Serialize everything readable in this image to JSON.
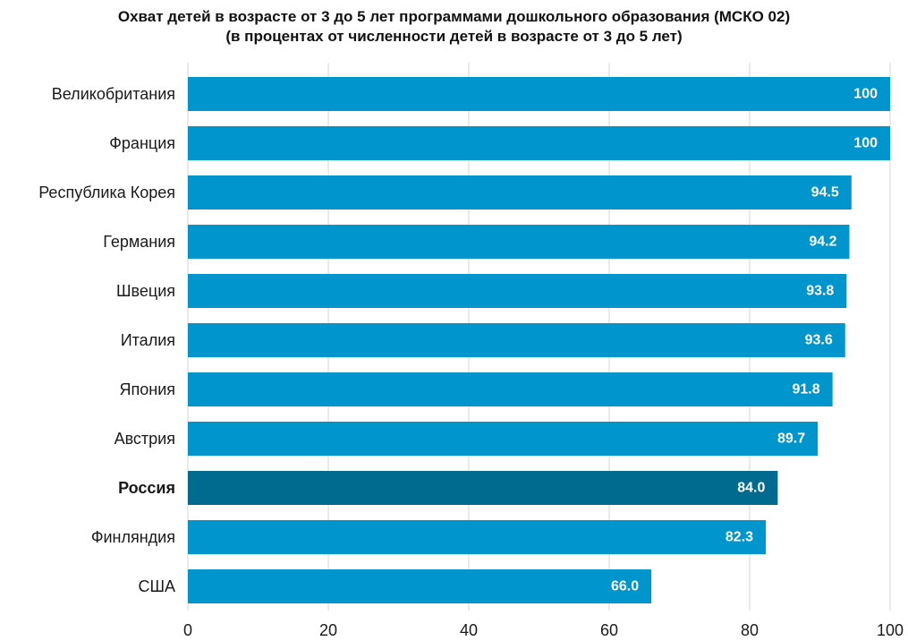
{
  "chart_data": {
    "type": "bar",
    "orientation": "horizontal",
    "title": "Охват детей в возрасте от 3 до 5 лет программами дошкольного образования (МСКО 02)",
    "subtitle": "(в процентах от численности детей в возрасте от 3 до 5 лет)",
    "categories": [
      "Великобритания",
      "Франция",
      "Республика Корея",
      "Германия",
      "Швеция",
      "Италия",
      "Япония",
      "Австрия",
      "Россия",
      "Финляндия",
      "США"
    ],
    "values": [
      100,
      100,
      94.5,
      94.2,
      93.8,
      93.6,
      91.8,
      89.7,
      84.0,
      82.3,
      66.0
    ],
    "value_labels": [
      "100",
      "100",
      "94.5",
      "94.2",
      "93.8",
      "93.6",
      "91.8",
      "89.7",
      "84.0",
      "82.3",
      "66.0"
    ],
    "highlight": "Россия",
    "xlim": [
      0,
      100
    ],
    "xticks": [
      0,
      20,
      40,
      60,
      80,
      100
    ],
    "xlabel": "",
    "ylabel": "",
    "grid": "vertical",
    "legend": "none",
    "colors": {
      "bar": "#0095cc",
      "highlight_bar": "#006a8f",
      "grid": "#d6d6d6",
      "value_label": "#ffffff"
    }
  }
}
